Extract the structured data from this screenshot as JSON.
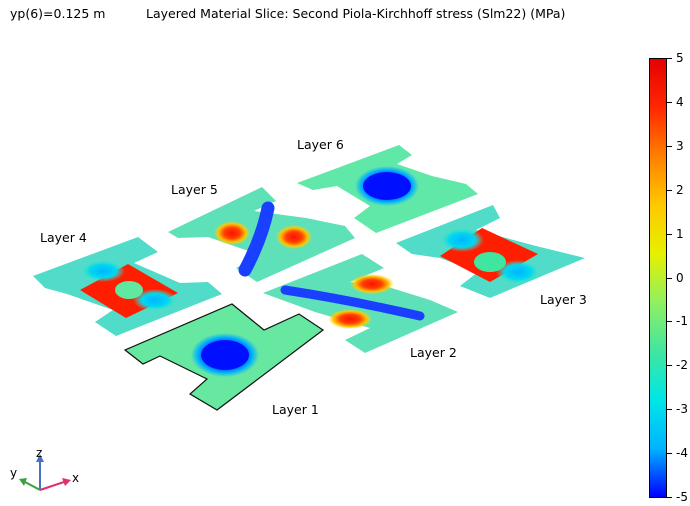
{
  "header": {
    "parameter": "yp(6)=0.125 m",
    "title": "Layered Material Slice: Second Piola-Kirchhoff stress (Slm22) (MPa)"
  },
  "layers": [
    {
      "label": "Layer 1"
    },
    {
      "label": "Layer 2"
    },
    {
      "label": "Layer 3"
    },
    {
      "label": "Layer 4"
    },
    {
      "label": "Layer 5"
    },
    {
      "label": "Layer 6"
    }
  ],
  "colorbar": {
    "max": 5,
    "min": -5,
    "ticks": [
      "5",
      "4",
      "3",
      "2",
      "1",
      "0",
      "-1",
      "-2",
      "-3",
      "-4",
      "-5"
    ],
    "colors": [
      "#0000ff",
      "#00b4ff",
      "#00e6e6",
      "#40e6a0",
      "#90f060",
      "#e6f000",
      "#ffc800",
      "#ff8000",
      "#ff2800",
      "#e60000"
    ]
  },
  "axes": {
    "x": "x",
    "y": "y",
    "z": "z"
  }
}
